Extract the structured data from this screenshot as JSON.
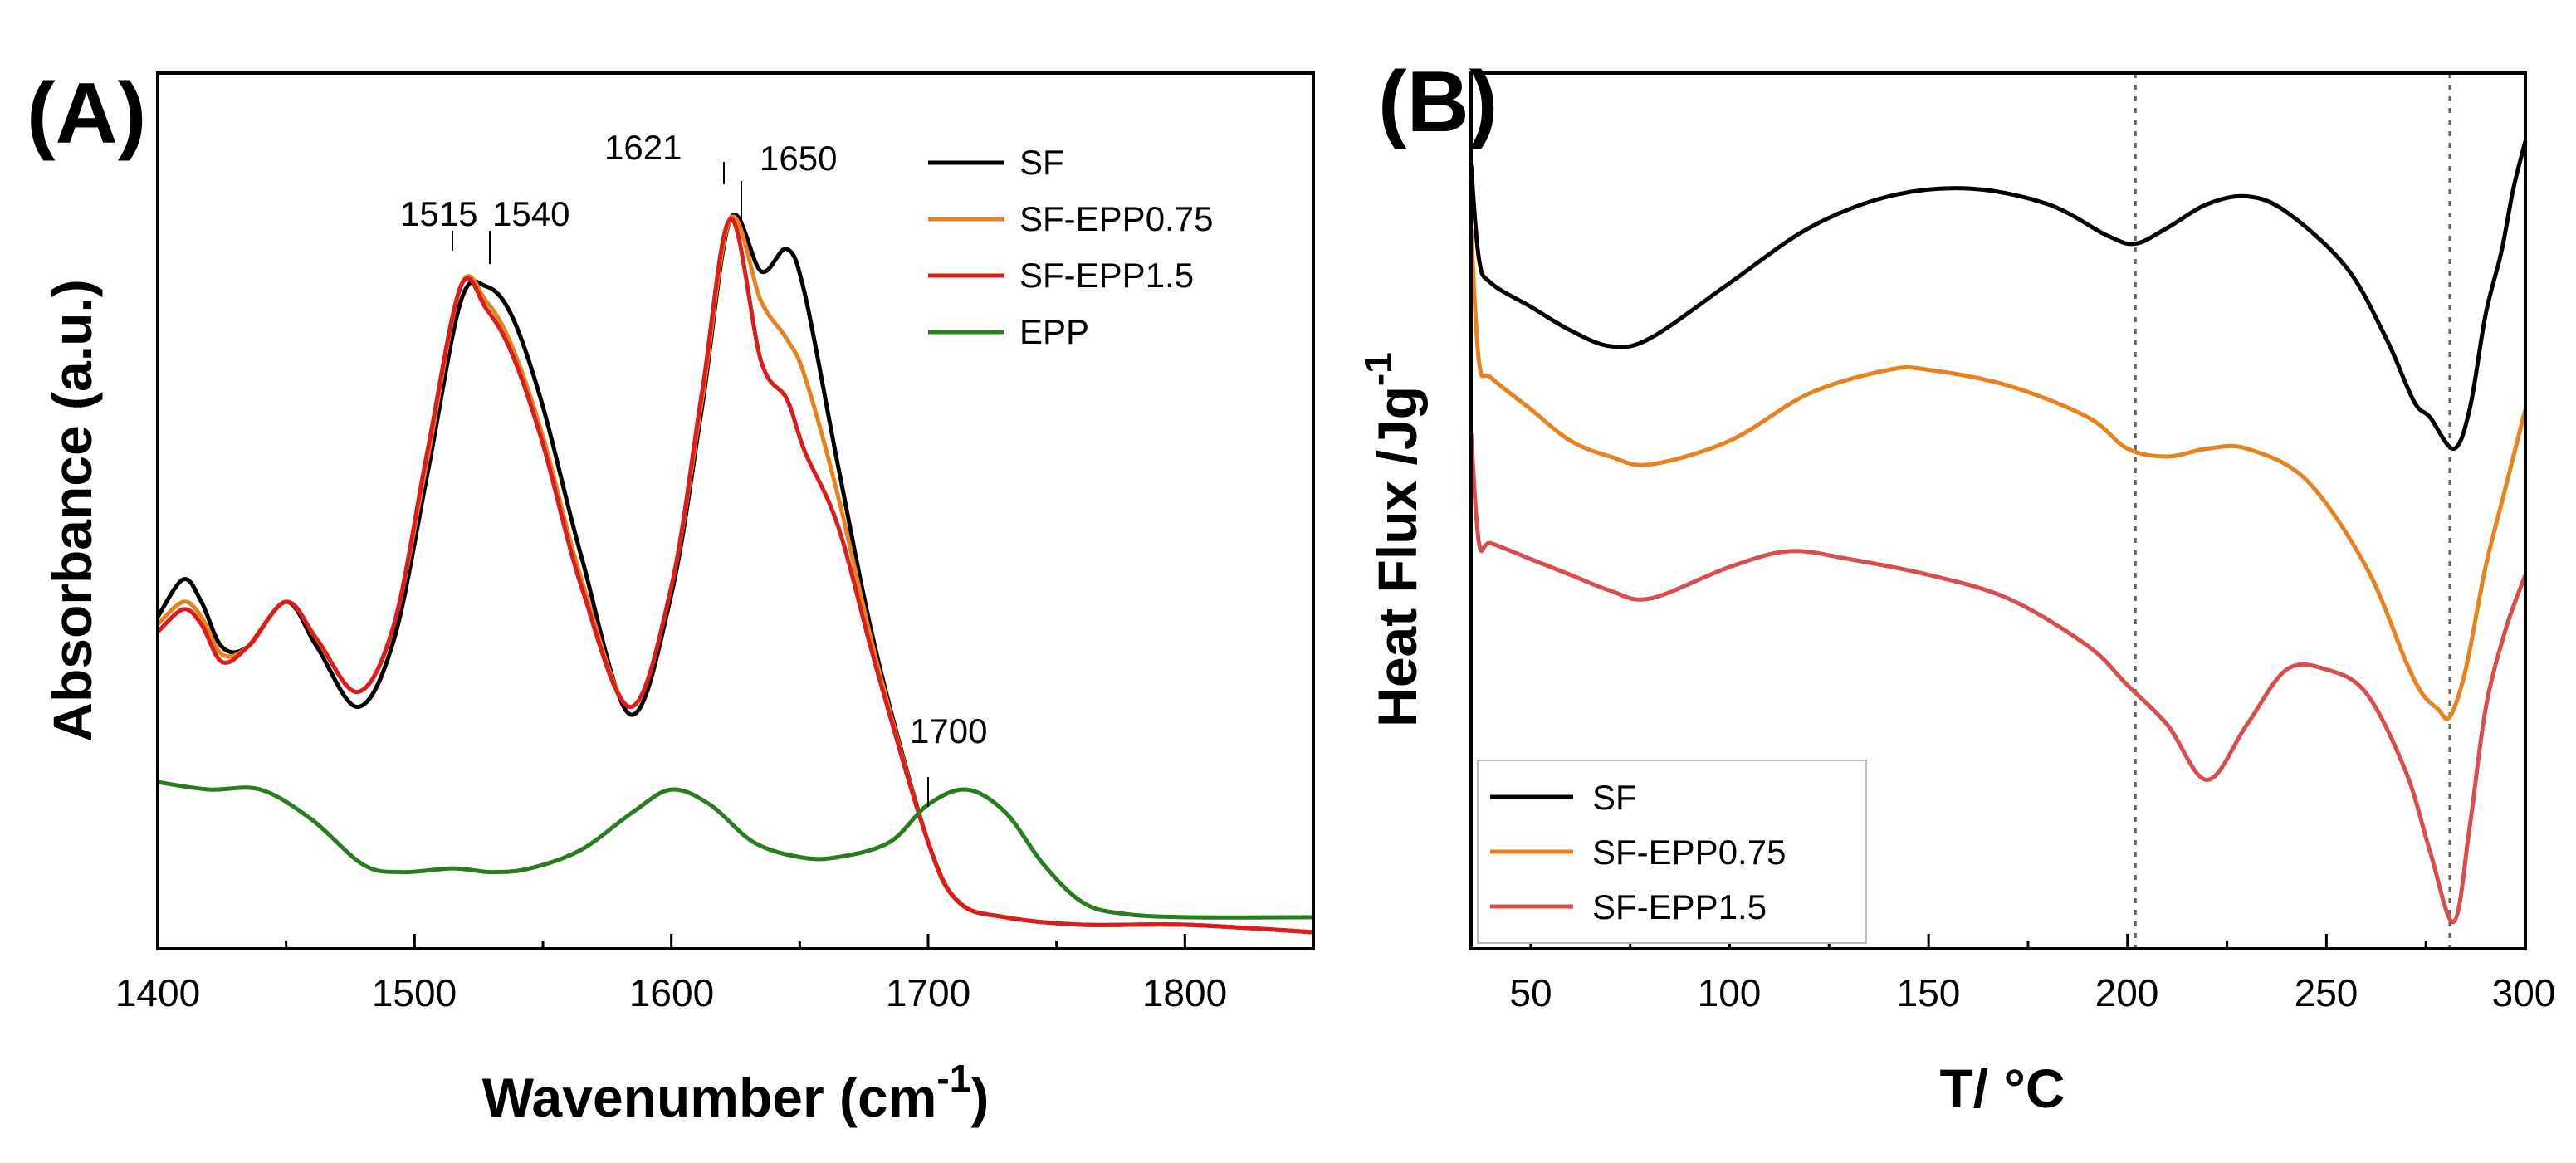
{
  "colors": {
    "SF": "#000000",
    "SF-EPP0.75": "#e8821e",
    "SF-EPP1.5": "#dd1c1c",
    "EPP": "#2a7d1e",
    "SF-EPP1.5-B": "#d94d4d"
  },
  "chart_data": [
    {
      "type": "line",
      "panel_label": "(A)",
      "xlabel": "Wavenumber (cm",
      "xlabel_sup": "-1",
      "xlabel_close": ")",
      "ylabel": "Absorbance (a.u.)",
      "xlim": [
        1400,
        1850
      ],
      "ylim": [
        0,
        1.1
      ],
      "xticks": [
        "1400",
        "1500",
        "1600",
        "1700",
        "1800"
      ],
      "legend_position": "top-right",
      "annotations": [
        {
          "text": "1515",
          "x": 1515
        },
        {
          "text": "1540",
          "x": 1540
        },
        {
          "text": "1621",
          "x": 1621
        },
        {
          "text": "1650",
          "x": 1650
        },
        {
          "text": "1700",
          "x": 1700
        }
      ],
      "series": [
        {
          "name": "SF",
          "x": [
            1400,
            1410,
            1417,
            1425,
            1435,
            1450,
            1462,
            1478,
            1492,
            1505,
            1518,
            1528,
            1538,
            1550,
            1565,
            1584,
            1600,
            1612,
            1623,
            1635,
            1645,
            1652,
            1665,
            1680,
            1700,
            1712,
            1730,
            1760,
            1800,
            1850
          ],
          "y": [
            0.42,
            0.47,
            0.44,
            0.38,
            0.38,
            0.44,
            0.38,
            0.3,
            0.39,
            0.61,
            0.84,
            0.86,
            0.82,
            0.7,
            0.5,
            0.29,
            0.45,
            0.7,
            0.95,
            0.88,
            0.91,
            0.85,
            0.62,
            0.37,
            0.12,
            0.04,
            0.02,
            0.01,
            0.01,
            0.0
          ]
        },
        {
          "name": "SF-EPP0.75",
          "x": [
            1400,
            1410,
            1417,
            1425,
            1435,
            1450,
            1462,
            1478,
            1492,
            1505,
            1518,
            1528,
            1538,
            1550,
            1565,
            1584,
            1600,
            1612,
            1623,
            1635,
            1645,
            1652,
            1665,
            1680,
            1700,
            1712,
            1730,
            1760,
            1800,
            1850
          ],
          "y": [
            0.41,
            0.44,
            0.42,
            0.37,
            0.38,
            0.44,
            0.39,
            0.32,
            0.41,
            0.63,
            0.86,
            0.84,
            0.78,
            0.66,
            0.47,
            0.3,
            0.46,
            0.71,
            0.95,
            0.84,
            0.79,
            0.74,
            0.58,
            0.36,
            0.12,
            0.04,
            0.02,
            0.01,
            0.01,
            0.0
          ]
        },
        {
          "name": "SF-EPP1.5",
          "x": [
            1400,
            1410,
            1417,
            1425,
            1435,
            1450,
            1462,
            1478,
            1492,
            1505,
            1518,
            1528,
            1538,
            1550,
            1565,
            1584,
            1600,
            1612,
            1623,
            1635,
            1645,
            1652,
            1665,
            1680,
            1700,
            1712,
            1730,
            1760,
            1800,
            1850
          ],
          "y": [
            0.4,
            0.43,
            0.41,
            0.36,
            0.38,
            0.44,
            0.39,
            0.32,
            0.41,
            0.64,
            0.86,
            0.83,
            0.77,
            0.65,
            0.46,
            0.3,
            0.46,
            0.72,
            0.95,
            0.76,
            0.71,
            0.64,
            0.54,
            0.35,
            0.12,
            0.04,
            0.02,
            0.01,
            0.01,
            0.0
          ]
        },
        {
          "name": "EPP",
          "x": [
            1400,
            1420,
            1440,
            1460,
            1480,
            1495,
            1515,
            1530,
            1545,
            1565,
            1585,
            1600,
            1615,
            1632,
            1650,
            1665,
            1685,
            1700,
            1715,
            1730,
            1745,
            1760,
            1775,
            1800,
            1850
          ],
          "y": [
            0.2,
            0.19,
            0.19,
            0.15,
            0.09,
            0.08,
            0.085,
            0.08,
            0.085,
            0.11,
            0.16,
            0.19,
            0.17,
            0.12,
            0.1,
            0.1,
            0.12,
            0.17,
            0.19,
            0.16,
            0.09,
            0.04,
            0.025,
            0.02,
            0.02
          ]
        }
      ]
    },
    {
      "type": "line",
      "panel_label": "(B)",
      "xlabel": "T/ °C",
      "ylabel": "Heat Flux /Jg",
      "ylabel_sup": "-1",
      "xlim": [
        35,
        300
      ],
      "ylim": [
        0,
        1
      ],
      "xticks": [
        "50",
        "100",
        "150",
        "200",
        "250",
        "300"
      ],
      "vlines": [
        202,
        281
      ],
      "legend_position": "bottom-left",
      "series": [
        {
          "name": "SF",
          "x": [
            35,
            37,
            40,
            50,
            60,
            70,
            80,
            100,
            120,
            140,
            160,
            180,
            195,
            202,
            210,
            220,
            230,
            240,
            255,
            265,
            272,
            276,
            282,
            286,
            290,
            294,
            297,
            300
          ],
          "y": [
            0.97,
            0.85,
            0.82,
            0.79,
            0.76,
            0.74,
            0.75,
            0.82,
            0.89,
            0.93,
            0.94,
            0.92,
            0.88,
            0.87,
            0.89,
            0.92,
            0.93,
            0.91,
            0.84,
            0.75,
            0.67,
            0.65,
            0.61,
            0.66,
            0.78,
            0.86,
            0.94,
            1.0
          ]
        },
        {
          "name": "SF-EPP0.75",
          "x": [
            35,
            37,
            40,
            50,
            60,
            70,
            80,
            100,
            120,
            140,
            150,
            170,
            190,
            200,
            210,
            220,
            230,
            245,
            260,
            270,
            274,
            278,
            281,
            285,
            290,
            295,
            300
          ],
          "y": [
            0.89,
            0.72,
            0.7,
            0.66,
            0.62,
            0.6,
            0.59,
            0.62,
            0.68,
            0.71,
            0.71,
            0.69,
            0.65,
            0.61,
            0.6,
            0.61,
            0.61,
            0.57,
            0.46,
            0.34,
            0.3,
            0.28,
            0.27,
            0.33,
            0.46,
            0.56,
            0.66
          ]
        },
        {
          "name": "SF-EPP1.5",
          "x": [
            35,
            37,
            40,
            50,
            60,
            70,
            80,
            100,
            115,
            130,
            150,
            170,
            190,
            200,
            210,
            220,
            230,
            240,
            250,
            260,
            270,
            276,
            282,
            286,
            290,
            295,
            300
          ],
          "y": [
            0.63,
            0.49,
            0.49,
            0.47,
            0.45,
            0.43,
            0.42,
            0.46,
            0.48,
            0.47,
            0.45,
            0.42,
            0.36,
            0.31,
            0.26,
            0.19,
            0.26,
            0.33,
            0.33,
            0.3,
            0.2,
            0.1,
            0.01,
            0.13,
            0.28,
            0.38,
            0.45
          ]
        }
      ]
    }
  ]
}
